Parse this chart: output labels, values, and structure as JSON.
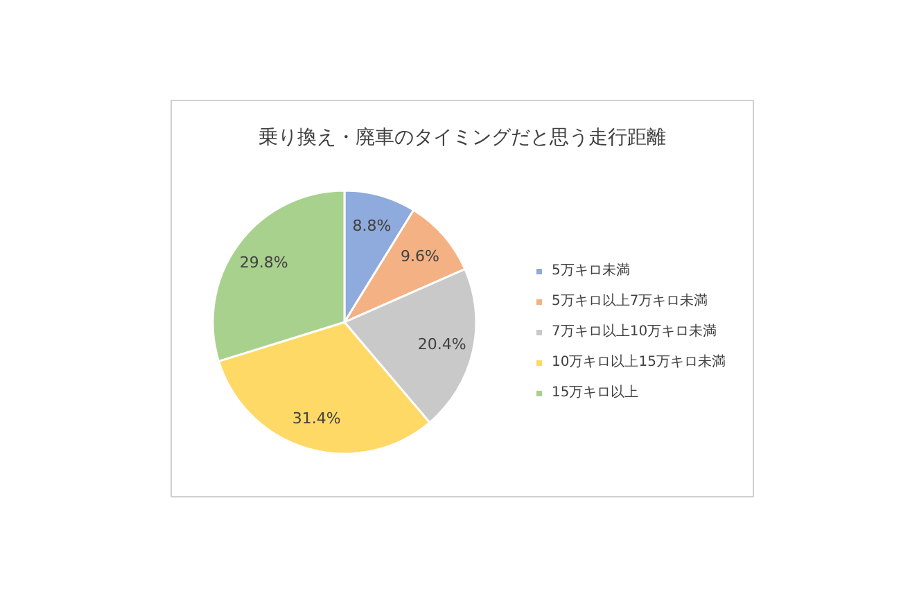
{
  "chart_data": {
    "type": "pie",
    "title": "乗り換え・廃車のタイミングだと思う走行距離",
    "categories": [
      "5万キロ未満",
      "5万キロ以上7万キロ未満",
      "7万キロ以上10万キロ未満",
      "10万キロ以上15万キロ未満",
      "15万キロ以上"
    ],
    "values": [
      8.8,
      9.6,
      20.4,
      31.4,
      29.8
    ],
    "colors": [
      "#8faadc",
      "#f4b183",
      "#c9c9c9",
      "#ffd966",
      "#a9d18e"
    ],
    "value_labels": [
      "8.8%",
      "9.6%",
      "20.4%",
      "31.4%",
      "29.8%"
    ],
    "legend": "right"
  }
}
